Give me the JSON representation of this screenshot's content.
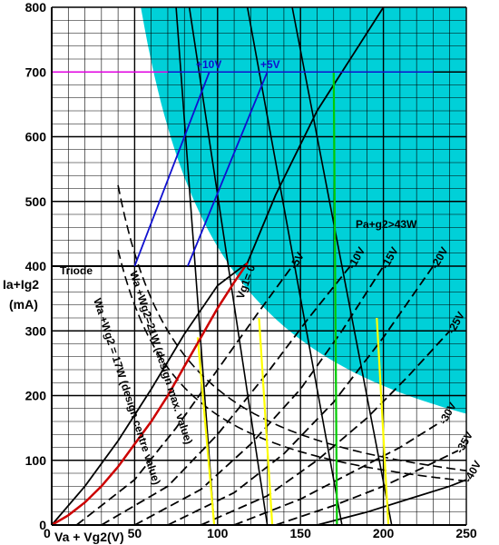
{
  "chart_data": {
    "type": "line",
    "title": "",
    "xlabel": "Va + Vg2 (V)",
    "ylabel": "Ia + Ig2 (mA)",
    "xlim": [
      0,
      250
    ],
    "ylim": [
      0,
      800
    ],
    "grid": true,
    "x_ticks": [
      "0",
      "50",
      "100",
      "150",
      "200",
      "250"
    ],
    "y_ticks": [
      "0",
      "100",
      "200",
      "300",
      "400",
      "500",
      "600",
      "700",
      "800"
    ],
    "ylabel_lines": [
      "Ia+Ig2",
      "(mA)"
    ],
    "xlabel_parts": {
      "zero": "0",
      "text": "Va + Vg2(V)"
    },
    "dissipation_region": {
      "label": "Pa+g2>43W",
      "color": "#00d0d8",
      "power_w": 43,
      "xlim": [
        0,
        250
      ]
    },
    "hyperbolas": [
      {
        "name": "Wa+Wg2=21W",
        "label": "Wa +Wg2=21W (design max. value)",
        "power_w": 21,
        "dashed": true
      },
      {
        "name": "Wa+Wg2=17W",
        "label": "Wa +Wg2 = 17W (design centre value)",
        "power_w": 17,
        "dashed": true
      }
    ],
    "triode_curve": {
      "label": "Triode",
      "color": "#cc0000",
      "points": [
        [
          0,
          0
        ],
        [
          10,
          15
        ],
        [
          20,
          35
        ],
        [
          30,
          60
        ],
        [
          40,
          90
        ],
        [
          50,
          125
        ],
        [
          60,
          160
        ],
        [
          70,
          200
        ],
        [
          80,
          245
        ],
        [
          90,
          290
        ],
        [
          100,
          335
        ],
        [
          110,
          375
        ],
        [
          118,
          405
        ]
      ]
    },
    "triode_line_y": 400,
    "magenta_line": {
      "y": 700,
      "x": [
        0,
        70
      ],
      "color": "#e000e0"
    },
    "blue_load_line": {
      "y": 700,
      "x": [
        70,
        230
      ],
      "color": "#1010d0"
    },
    "grid_curves": [
      {
        "name": "Vg1=0",
        "label": "Vg1= 0",
        "dashed": false,
        "cutoff_v": 0,
        "points": [
          [
            0,
            0
          ],
          [
            20,
            60
          ],
          [
            40,
            130
          ],
          [
            60,
            210
          ],
          [
            80,
            295
          ],
          [
            100,
            370
          ],
          [
            118,
            405
          ],
          [
            135,
            510
          ],
          [
            160,
            640
          ],
          [
            200,
            820
          ]
        ]
      },
      {
        "name": "-5V",
        "label": "-5V",
        "dashed": true,
        "cutoff_v": 15,
        "points": [
          [
            15,
            0
          ],
          [
            50,
            70
          ],
          [
            75,
            150
          ],
          [
            100,
            240
          ],
          [
            125,
            330
          ],
          [
            145,
            400
          ]
        ]
      },
      {
        "name": "-10V",
        "label": "-10V",
        "dashed": true,
        "cutoff_v": 30,
        "points": [
          [
            30,
            0
          ],
          [
            70,
            60
          ],
          [
            100,
            140
          ],
          [
            130,
            235
          ],
          [
            155,
            320
          ],
          [
            180,
            400
          ]
        ]
      },
      {
        "name": "-15V",
        "label": "-15V",
        "dashed": true,
        "cutoff_v": 50,
        "points": [
          [
            50,
            0
          ],
          [
            90,
            55
          ],
          [
            120,
            125
          ],
          [
            150,
            210
          ],
          [
            175,
            300
          ],
          [
            200,
            400
          ]
        ]
      },
      {
        "name": "-20V",
        "label": "-20V",
        "dashed": true,
        "cutoff_v": 70,
        "points": [
          [
            70,
            0
          ],
          [
            110,
            50
          ],
          [
            140,
            110
          ],
          [
            170,
            190
          ],
          [
            200,
            290
          ],
          [
            230,
            400
          ]
        ]
      },
      {
        "name": "-25V",
        "label": "-25V",
        "dashed": true,
        "cutoff_v": 90,
        "points": [
          [
            90,
            0
          ],
          [
            130,
            45
          ],
          [
            160,
            100
          ],
          [
            190,
            165
          ],
          [
            215,
            230
          ],
          [
            240,
            300
          ]
        ]
      },
      {
        "name": "-30V",
        "label": "-30V",
        "dashed": true,
        "cutoff_v": 110,
        "points": [
          [
            110,
            0
          ],
          [
            150,
            40
          ],
          [
            180,
            80
          ],
          [
            210,
            120
          ],
          [
            235,
            160
          ]
        ]
      },
      {
        "name": "-35V",
        "label": "-35V",
        "dashed": true,
        "cutoff_v": 135,
        "points": [
          [
            135,
            0
          ],
          [
            170,
            30
          ],
          [
            200,
            60
          ],
          [
            225,
            90
          ],
          [
            245,
            115
          ]
        ]
      },
      {
        "name": "-40V",
        "label": "-40V",
        "dashed": false,
        "cutoff_v": 160,
        "points": [
          [
            160,
            0
          ],
          [
            190,
            20
          ],
          [
            215,
            40
          ],
          [
            240,
            60
          ],
          [
            250,
            70
          ]
        ]
      }
    ],
    "steep_lines": [
      {
        "name": "load-1",
        "color": "#000000",
        "points": [
          [
            75,
            800
          ],
          [
            98,
            0
          ]
        ]
      },
      {
        "name": "load-2",
        "color": "#000000",
        "points": [
          [
            83,
            800
          ],
          [
            130,
            0
          ]
        ]
      },
      {
        "name": "load-3",
        "color": "#000000",
        "points": [
          [
            118,
            800
          ],
          [
            175,
            0
          ]
        ]
      },
      {
        "name": "load-4",
        "color": "#000000",
        "points": [
          [
            145,
            800
          ],
          [
            205,
            0
          ]
        ]
      }
    ],
    "colored_segments": [
      {
        "name": "yellow-1",
        "color": "#ffff00",
        "points": [
          [
            88,
            290
          ],
          [
            98,
            0
          ]
        ]
      },
      {
        "name": "yellow-2",
        "color": "#ffff00",
        "points": [
          [
            125,
            320
          ],
          [
            133,
            0
          ]
        ]
      },
      {
        "name": "yellow-3",
        "color": "#ffff00",
        "points": [
          [
            196,
            320
          ],
          [
            203,
            0
          ]
        ]
      },
      {
        "name": "green-1",
        "color": "#00cc00",
        "points": [
          [
            170,
            700
          ],
          [
            172,
            0
          ]
        ]
      }
    ],
    "blue_drive_lines": [
      {
        "name": "+10V",
        "label": "+10V",
        "points": [
          [
            50,
            400
          ],
          [
            95,
            700
          ]
        ]
      },
      {
        "name": "+5V",
        "label": "+5V",
        "points": [
          [
            82,
            400
          ],
          [
            130,
            700
          ]
        ]
      }
    ]
  }
}
